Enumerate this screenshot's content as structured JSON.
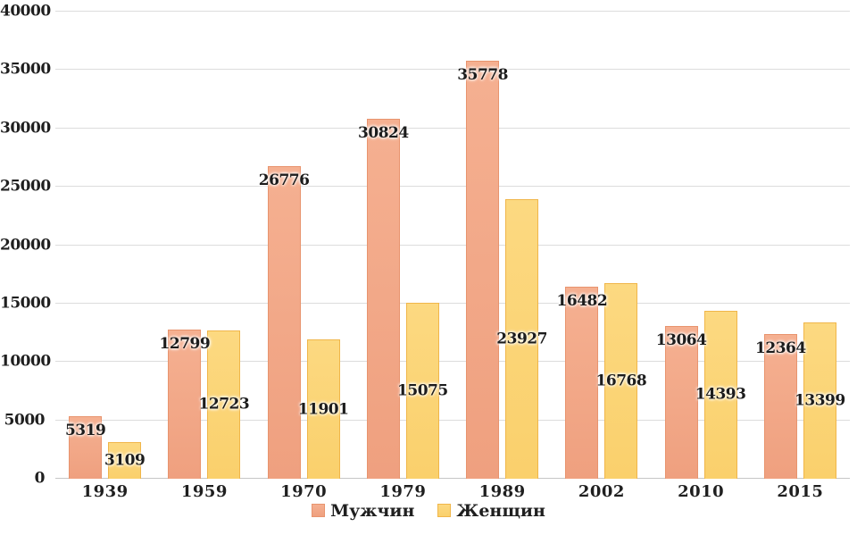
{
  "chart_data": {
    "type": "bar",
    "title": "",
    "xlabel": "",
    "ylabel": "",
    "categories": [
      "1939",
      "1959",
      "1970",
      "1979",
      "1989",
      "2002",
      "2010",
      "2015"
    ],
    "series": [
      {
        "name": "Мужчин",
        "values": [
          5319,
          12799,
          26776,
          30824,
          35778,
          16482,
          13064,
          12364
        ],
        "fill_top": "#f5b091",
        "fill_bottom": "#efa07f",
        "border": "#e8946e",
        "label_position": "inside-top"
      },
      {
        "name": "Женщин",
        "values": [
          3109,
          12723,
          11901,
          15075,
          23927,
          16768,
          14393,
          13399
        ],
        "fill_top": "#fcd981",
        "fill_bottom": "#fad06c",
        "border": "#f0b64a",
        "label_position": "inside-center"
      }
    ],
    "ylim": [
      0,
      40000
    ],
    "ytick_step": 5000,
    "yticks": [
      "0",
      "5000",
      "10000",
      "15000",
      "20000",
      "25000",
      "30000",
      "35000",
      "40000"
    ],
    "grid": true,
    "gridline_color": "#dcdcdc",
    "axis_line_color": "#c6c6c6",
    "text_color": "#1f1f1f",
    "legend_position": "bottom-center"
  }
}
